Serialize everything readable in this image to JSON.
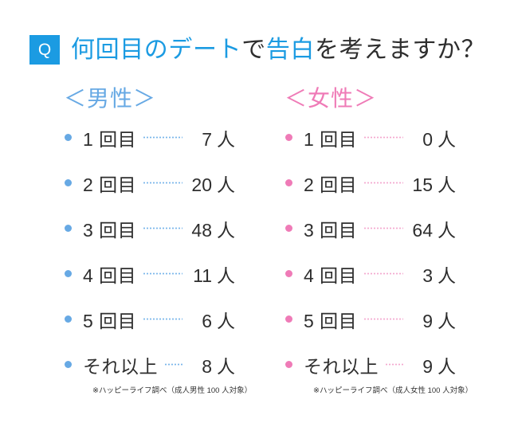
{
  "question": {
    "badge": "Q",
    "parts": [
      {
        "text": "何回目のデート",
        "accent": true
      },
      {
        "text": "で",
        "accent": false
      },
      {
        "text": "告白",
        "accent": true
      },
      {
        "text": "を考えますか？",
        "accent": false
      }
    ]
  },
  "colors": {
    "accent": "#1b9be2",
    "text": "#2e2e2e",
    "male": "#67a9e4",
    "male_leader": "#7ab6ea",
    "female": "#ef7bb7",
    "female_leader": "#f4a9cf"
  },
  "chart_data": {
    "type": "table",
    "categories": [
      "1 回目",
      "2 回目",
      "3 回目",
      "4 回目",
      "5 回目",
      "それ以上"
    ],
    "unit": "人",
    "series": [
      {
        "name": "＜男性＞",
        "values": [
          7,
          20,
          48,
          11,
          6,
          8
        ],
        "note": "※ハッピーライフ調べ（成人男性 100 人対象）"
      },
      {
        "name": "＜女性＞",
        "values": [
          0,
          15,
          64,
          3,
          9,
          9
        ],
        "note": "※ハッピーライフ調べ（成人女性 100 人対象）"
      }
    ]
  }
}
